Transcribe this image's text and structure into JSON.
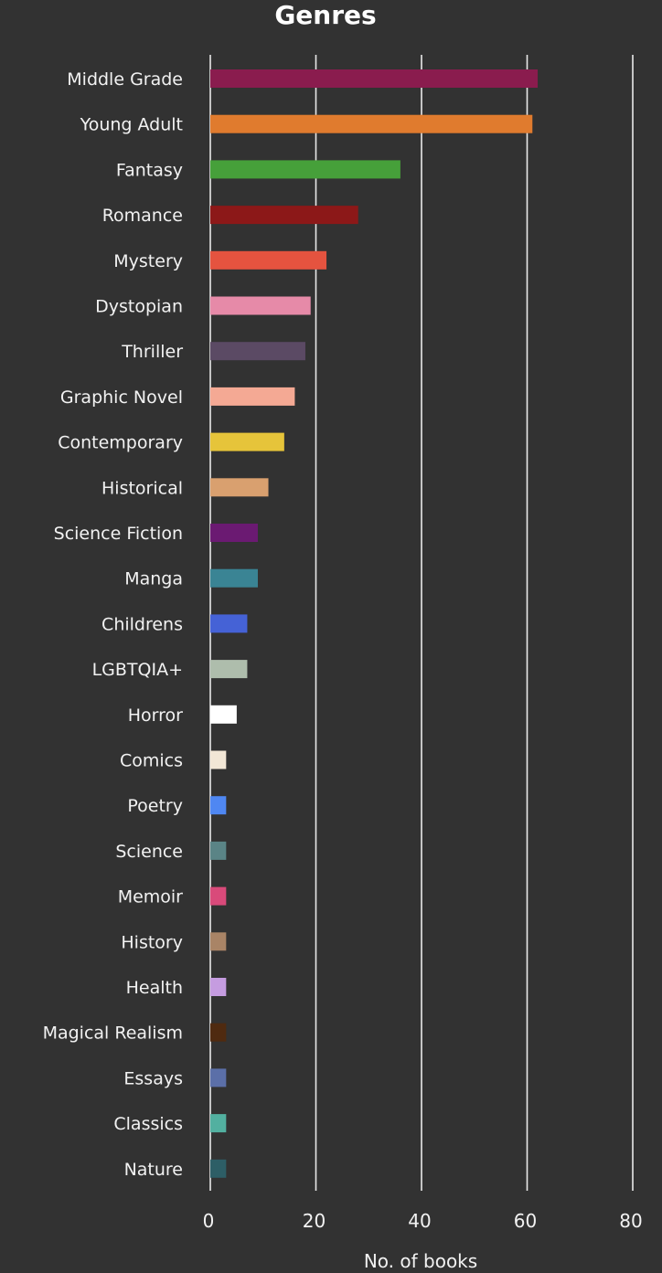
{
  "chart_data": {
    "type": "bar",
    "orientation": "horizontal",
    "title": "Genres",
    "xlabel": "No. of books",
    "ylabel": "",
    "xlim": [
      0,
      80
    ],
    "xticks": [
      "0",
      "20",
      "40",
      "60",
      "80"
    ],
    "grid": true,
    "categories": [
      "Middle Grade",
      "Young Adult",
      "Fantasy",
      "Romance",
      "Mystery",
      "Dystopian",
      "Thriller",
      "Graphic Novel",
      "Contemporary",
      "Historical",
      "Science Fiction",
      "Manga",
      "Childrens",
      "LGBTQIA+",
      "Horror",
      "Comics",
      "Poetry",
      "Science",
      "Memoir",
      "History",
      "Health",
      "Magical Realism",
      "Essays",
      "Classics",
      "Nature"
    ],
    "values": [
      62,
      61,
      36,
      28,
      22,
      19,
      18,
      16,
      14,
      11,
      9,
      9,
      7,
      7,
      5,
      3,
      3,
      3,
      3,
      3,
      3,
      3,
      3,
      3,
      3
    ],
    "colors": [
      "#8a1c4e",
      "#e07b2e",
      "#46a03a",
      "#8c1818",
      "#e5533f",
      "#e68aa8",
      "#5b4a64",
      "#f4a994",
      "#e6c43a",
      "#d9a06f",
      "#6b1a72",
      "#3a8494",
      "#4562d6",
      "#aebdac",
      "#ffffff",
      "#f2e7d6",
      "#4f87f2",
      "#5a8486",
      "#d94a7a",
      "#a98466",
      "#c59ce0",
      "#4f2a10",
      "#5b6fa8",
      "#52b0a0",
      "#2d5e66"
    ]
  }
}
